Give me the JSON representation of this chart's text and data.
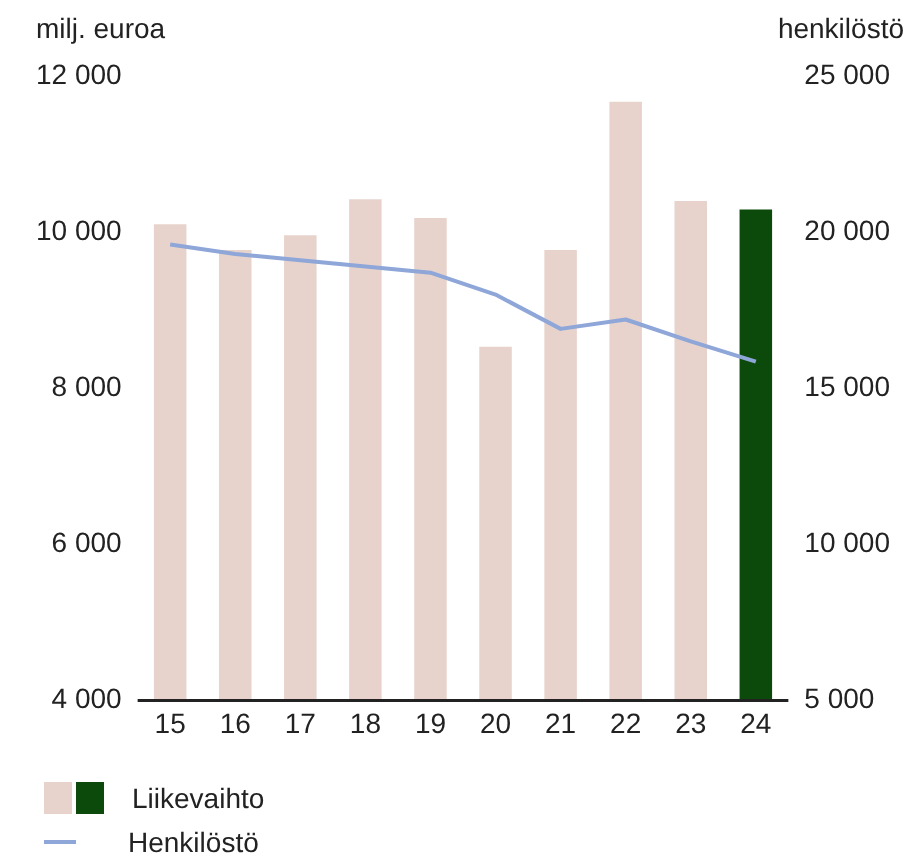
{
  "chart_data": {
    "type": "bar",
    "ylabel": "milj. euroa",
    "y2label": "henkilöstö",
    "categories": [
      "15",
      "16",
      "17",
      "18",
      "19",
      "20",
      "21",
      "22",
      "23",
      "24"
    ],
    "series": [
      {
        "name": "Liikevaihto",
        "type": "bar",
        "colors": [
          "#e8d3cc",
          "#e8d3cc",
          "#e8d3cc",
          "#e8d3cc",
          "#e8d3cc",
          "#e8d3cc",
          "#e8d3cc",
          "#e8d3cc",
          "#e8d3cc",
          "#0b4a0b"
        ],
        "values": [
          10100,
          9770,
          9960,
          10420,
          10180,
          8530,
          9770,
          11670,
          10400,
          10290
        ]
      },
      {
        "name": "Henkilöstö",
        "type": "line",
        "color": "#8ea6d8",
        "axis": "y2",
        "values": [
          19600,
          19300,
          19100,
          18900,
          18700,
          18000,
          16900,
          17200,
          16500,
          15850
        ]
      }
    ],
    "ylim": [
      4000,
      12000
    ],
    "yticks": [
      {
        "value": 4000,
        "label": "4 000"
      },
      {
        "value": 6000,
        "label": "6 000"
      },
      {
        "value": 8000,
        "label": "8 000"
      },
      {
        "value": 10000,
        "label": "10 000"
      },
      {
        "value": 12000,
        "label": "12 000"
      }
    ],
    "y2lim": [
      5000,
      25000
    ],
    "y2ticks": [
      {
        "value": 5000,
        "label": "5 000"
      },
      {
        "value": 10000,
        "label": "10 000"
      },
      {
        "value": 15000,
        "label": "15 000"
      },
      {
        "value": 20000,
        "label": "20 000"
      },
      {
        "value": 25000,
        "label": "25 000"
      }
    ],
    "grid": false,
    "legend": "bottom",
    "marker": "none",
    "line_style": "solid"
  }
}
